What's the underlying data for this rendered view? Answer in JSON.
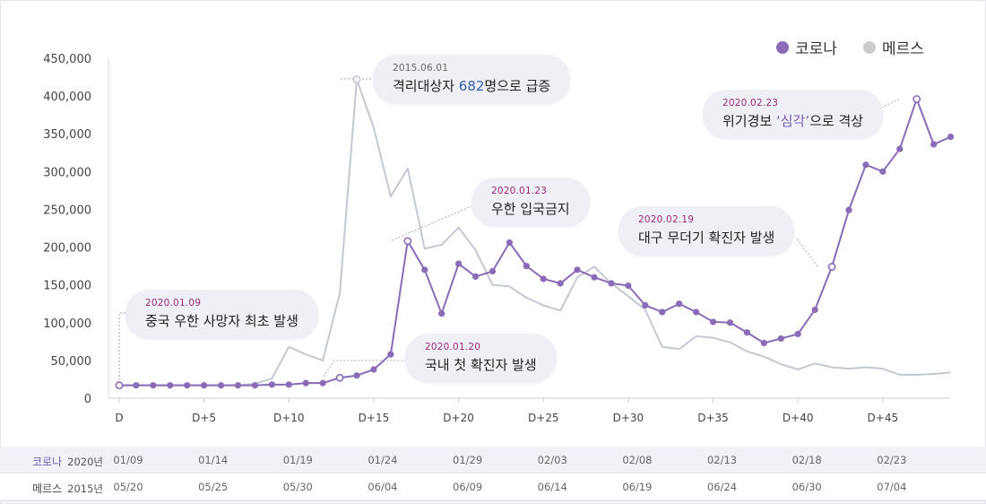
{
  "colors": {
    "corona": "#8a6bb8",
    "mers": "#c4c8d2",
    "axis": "#cccccc",
    "tick_text": "#444444"
  },
  "legend": [
    {
      "label": "코로나",
      "color": "#8a6bb8"
    },
    {
      "label": "메르스",
      "color": "#cccccc"
    }
  ],
  "chart_data": {
    "type": "line",
    "ylim": [
      0,
      450000
    ],
    "y_ticks": [
      "0",
      "50,000",
      "100,000",
      "150,000",
      "200,000",
      "250,000",
      "300,000",
      "350,000",
      "400,000",
      "450,000"
    ],
    "x_ticks": [
      "D",
      "D+5",
      "D+10",
      "D+15",
      "D+20",
      "D+25",
      "D+30",
      "D+35",
      "D+40",
      "D+45"
    ],
    "grid": false,
    "legend_position": "top-right",
    "series": [
      {
        "name": "코로나",
        "color": "#8a6bb8",
        "values": [
          17000,
          17000,
          17000,
          17000,
          17000,
          17000,
          17000,
          17000,
          17000,
          18000,
          18000,
          20000,
          20000,
          27000,
          30000,
          38000,
          58000,
          208000,
          170000,
          112000,
          178000,
          161000,
          168000,
          206000,
          175000,
          158000,
          152000,
          170000,
          160000,
          152000,
          149000,
          123000,
          114000,
          125000,
          114000,
          101000,
          100000,
          87000,
          73000,
          79000,
          85000,
          117000,
          174000,
          249000,
          309000,
          300000,
          330000,
          396000,
          336000,
          346000
        ],
        "open_markers": [
          0,
          13,
          17,
          42,
          47
        ]
      },
      {
        "name": "메르스",
        "color": "#c4c8d2",
        "values": [
          17000,
          17000,
          17000,
          17000,
          17000,
          17000,
          17000,
          17000,
          19000,
          26000,
          68000,
          58000,
          50000,
          139000,
          422000,
          358000,
          267000,
          304000,
          198000,
          203000,
          226000,
          196000,
          150000,
          148000,
          133000,
          123000,
          116000,
          160000,
          174000,
          152000,
          135000,
          117000,
          68000,
          65000,
          82000,
          80000,
          74000,
          62000,
          55000,
          45000,
          38000,
          46000,
          41000,
          39000,
          41000,
          39000,
          31000,
          31000,
          32000,
          34000
        ],
        "open_markers": [
          14
        ]
      }
    ],
    "annotations": [
      {
        "date": "2020.01.09",
        "text": "중국 우한 사망자 최초 발생"
      },
      {
        "date": "2015.06.01",
        "text_pre": "격리대상자 ",
        "text_hl": "682",
        "text_post": "명으로 급증"
      },
      {
        "date": "2020.01.20",
        "text": "국내 첫 확진자 발생"
      },
      {
        "date": "2020.01.23",
        "text": "우한 입국금지"
      },
      {
        "date": "2020.02.19",
        "text": "대구 무더기 확진자 발생"
      },
      {
        "date": "2020.02.23",
        "text_pre": "위기경보 ",
        "text_hl": "‘심각’",
        "text_post": "으로 격상"
      }
    ]
  },
  "date_table": {
    "rows": [
      {
        "name": "코로나",
        "year": "2020년",
        "dates": [
          "01/09",
          "01/14",
          "01/19",
          "01/24",
          "01/29",
          "02/03",
          "02/08",
          "02/13",
          "02/18",
          "02/23"
        ]
      },
      {
        "name": "메르스",
        "year": "2015년",
        "dates": [
          "05/20",
          "05/25",
          "05/30",
          "06/04",
          "06/09",
          "06/14",
          "06/19",
          "06/24",
          "06/30",
          "07/04"
        ]
      }
    ]
  }
}
